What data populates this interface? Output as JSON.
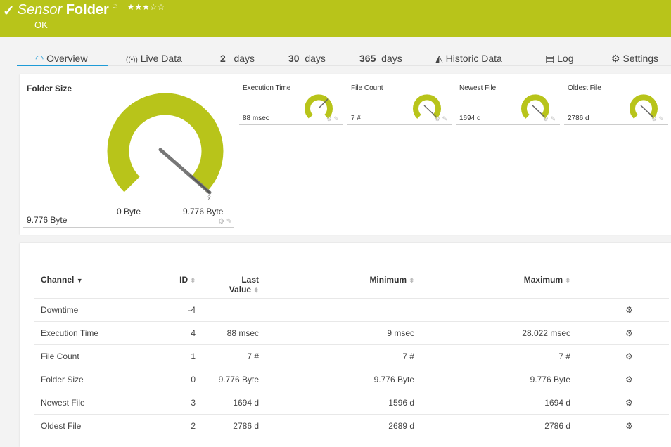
{
  "header": {
    "title_prefix": "Sensor",
    "title": "Folder",
    "status": "OK",
    "rating_stars": "★★★☆☆",
    "rating": 3,
    "color": "#b8c41a"
  },
  "tabs": [
    {
      "label": "Overview",
      "icon": "gauge-icon"
    },
    {
      "label": "Live Data",
      "icon": "broadcast-icon"
    },
    {
      "num": "2",
      "label": "days"
    },
    {
      "num": "30",
      "label": "days"
    },
    {
      "num": "365",
      "label": "days"
    },
    {
      "label": "Historic Data",
      "icon": "area-chart-icon"
    },
    {
      "label": "Log",
      "icon": "list-icon"
    },
    {
      "label": "Settings",
      "icon": "gear-icon"
    }
  ],
  "main_gauge": {
    "title": "Folder Size",
    "value": "9.776 Byte",
    "min_label": "0 Byte",
    "max_label": "9.776 Byte",
    "marker": "x̄"
  },
  "mini_gauges": [
    {
      "title": "Execution Time",
      "value": "88 msec"
    },
    {
      "title": "File Count",
      "value": "7 #"
    },
    {
      "title": "Newest File",
      "value": "1694 d"
    },
    {
      "title": "Oldest File",
      "value": "2786 d"
    }
  ],
  "table": {
    "headers": {
      "channel": "Channel",
      "id": "ID",
      "last": "Last",
      "last2": "Value",
      "minimum": "Minimum",
      "maximum": "Maximum"
    },
    "rows": [
      {
        "channel": "Downtime",
        "id": "-4",
        "last": "",
        "min": "",
        "max": ""
      },
      {
        "channel": "Execution Time",
        "id": "4",
        "last": "88 msec",
        "min": "9 msec",
        "max": "28.022 msec"
      },
      {
        "channel": "File Count",
        "id": "1",
        "last": "7 #",
        "min": "7 #",
        "max": "7 #"
      },
      {
        "channel": "Folder Size",
        "id": "0",
        "last": "9.776 Byte",
        "min": "9.776 Byte",
        "max": "9.776 Byte"
      },
      {
        "channel": "Newest File",
        "id": "3",
        "last": "1694 d",
        "min": "1596 d",
        "max": "1694 d"
      },
      {
        "channel": "Oldest File",
        "id": "2",
        "last": "2786 d",
        "min": "2689 d",
        "max": "2786 d"
      }
    ]
  }
}
